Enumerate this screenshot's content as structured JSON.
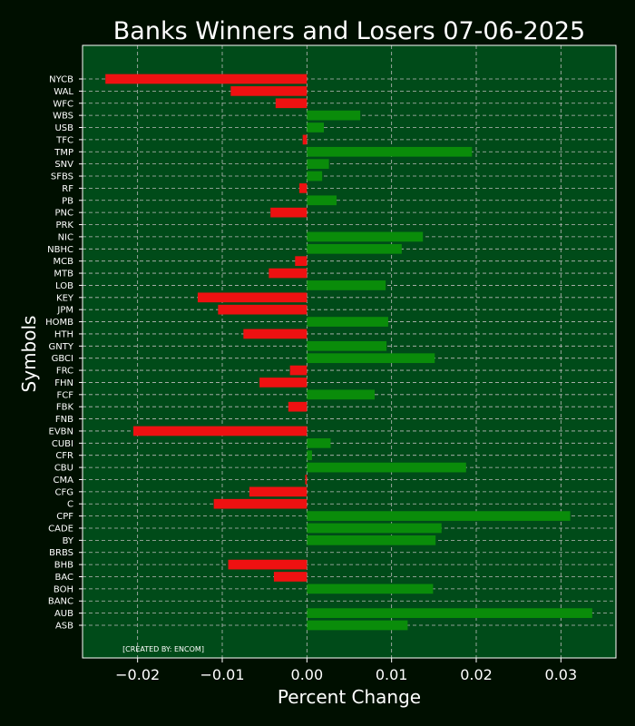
{
  "chart_data": {
    "type": "bar",
    "orientation": "horizontal",
    "title": "Banks Winners and Losers 07-06-2025",
    "xlabel": "Percent Change",
    "ylabel": "Symbols",
    "credit": "[CREATED BY: ENCOM]",
    "xlim": [
      -0.0265,
      0.0365
    ],
    "xticks": [
      -0.02,
      -0.01,
      0.0,
      0.01,
      0.02,
      0.03
    ],
    "xtick_labels": [
      "−0.02",
      "−0.01",
      "0.00",
      "0.01",
      "0.02",
      "0.03"
    ],
    "grid": true,
    "colors": {
      "figure_bg": "#000f00",
      "plot_bg": "#004b19",
      "positive": "#0a8c0a",
      "negative": "#ee1111",
      "grid": "#bbbbbb",
      "text": "#ffffff"
    },
    "categories": [
      "ASB",
      "AUB",
      "BANC",
      "BOH",
      "BAC",
      "BHB",
      "BRBS",
      "BY",
      "CADE",
      "CPF",
      "C",
      "CFG",
      "CMA",
      "CBU",
      "CFR",
      "CUBI",
      "EVBN",
      "FNB",
      "FBK",
      "FCF",
      "FHN",
      "FRC",
      "GBCI",
      "GNTY",
      "HTH",
      "HOMB",
      "JPM",
      "KEY",
      "LOB",
      "MTB",
      "MCB",
      "NBHC",
      "NIC",
      "PRK",
      "PNC",
      "PB",
      "RF",
      "SFBS",
      "SNV",
      "TMP",
      "TFC",
      "USB",
      "WBS",
      "WFC",
      "WAL",
      "NYCB"
    ],
    "values": [
      0.0119,
      0.0337,
      0.0,
      0.0149,
      -0.0039,
      -0.0093,
      0.0,
      0.0152,
      0.0159,
      0.0311,
      -0.011,
      -0.0068,
      -0.0002,
      0.0188,
      0.0006,
      0.0028,
      -0.0205,
      0.0,
      -0.0022,
      0.008,
      -0.0056,
      -0.002,
      0.0151,
      0.0094,
      -0.0075,
      0.0096,
      -0.0105,
      -0.0129,
      0.0093,
      -0.0045,
      -0.0014,
      0.0112,
      0.0137,
      0.0,
      -0.0043,
      0.0035,
      -0.0009,
      0.0018,
      0.0026,
      0.0195,
      -0.0005,
      0.002,
      0.0063,
      -0.0037,
      -0.009,
      -0.0238
    ]
  }
}
